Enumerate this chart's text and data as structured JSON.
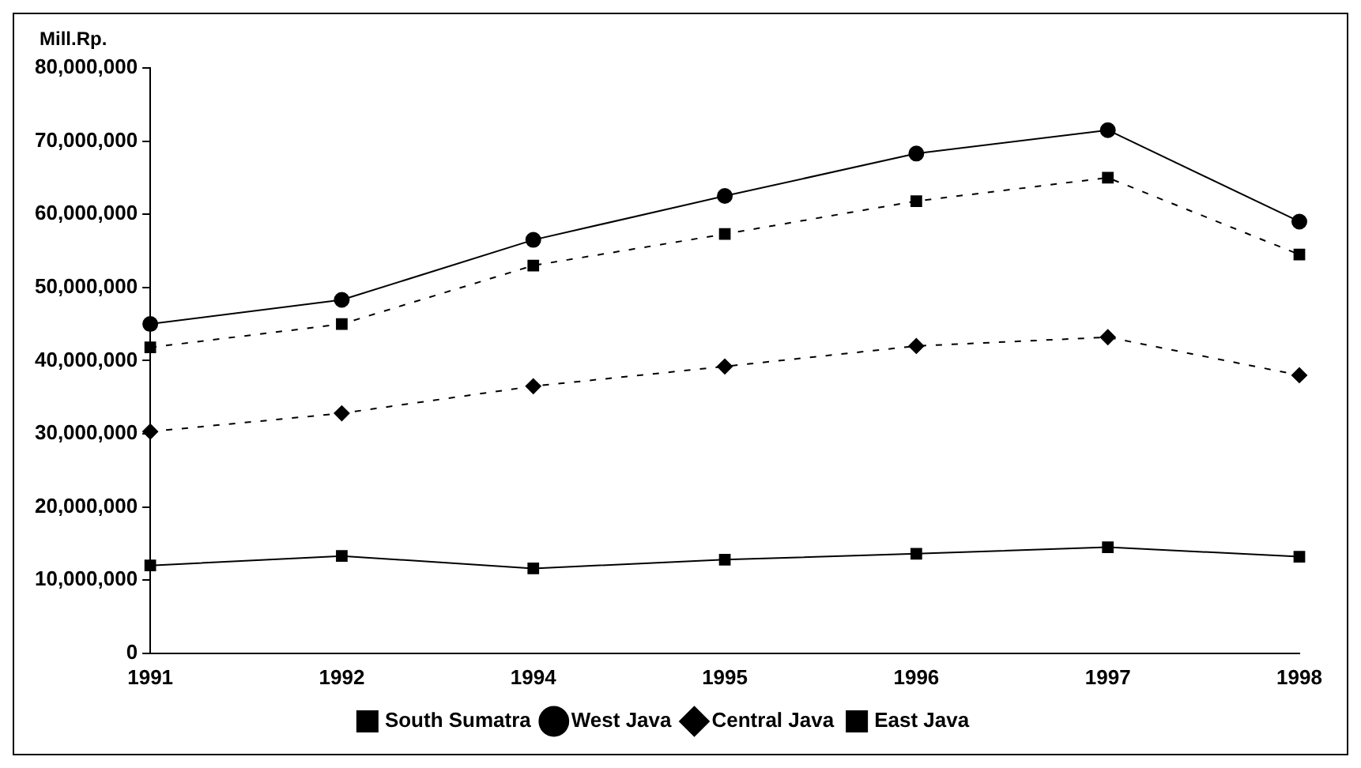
{
  "chart_data": {
    "type": "line",
    "ylabel": "Mill.Rp.",
    "categories": [
      "1991",
      "1992",
      "1994",
      "1995",
      "1996",
      "1997",
      "1998"
    ],
    "series": [
      {
        "name": "South Sumatra",
        "color": "#000000",
        "marker": "square",
        "line_style": "solid",
        "values": [
          12000000,
          13300000,
          11600000,
          12800000,
          13600000,
          14500000,
          13200000
        ]
      },
      {
        "name": "West Java",
        "color": "#000000",
        "marker": "circle",
        "line_style": "solid",
        "values": [
          45000000,
          48300000,
          56500000,
          62500000,
          68300000,
          71500000,
          59000000
        ]
      },
      {
        "name": "Central Java",
        "color": "#000000",
        "marker": "diamond",
        "line_style": "dashed",
        "values": [
          30300000,
          32800000,
          36500000,
          39200000,
          42000000,
          43200000,
          38000000
        ]
      },
      {
        "name": "East Java",
        "color": "#000000",
        "marker": "square",
        "line_style": "dashed",
        "values": [
          41800000,
          45000000,
          53000000,
          57300000,
          61800000,
          65000000,
          54500000
        ]
      }
    ],
    "ylim": [
      0,
      80000000
    ],
    "yticks": [
      {
        "value": 0,
        "label": "0"
      },
      {
        "value": 10000000,
        "label": "10,000,000"
      },
      {
        "value": 20000000,
        "label": "20,000,000"
      },
      {
        "value": 30000000,
        "label": "30,000,000"
      },
      {
        "value": 40000000,
        "label": "40,000,000"
      },
      {
        "value": 50000000,
        "label": "50,000,000"
      },
      {
        "value": 60000000,
        "label": "60,000,000"
      },
      {
        "value": 70000000,
        "label": "70,000,000"
      },
      {
        "value": 80000000,
        "label": "80,000,000"
      }
    ],
    "grid": false,
    "legend": "bottom"
  }
}
